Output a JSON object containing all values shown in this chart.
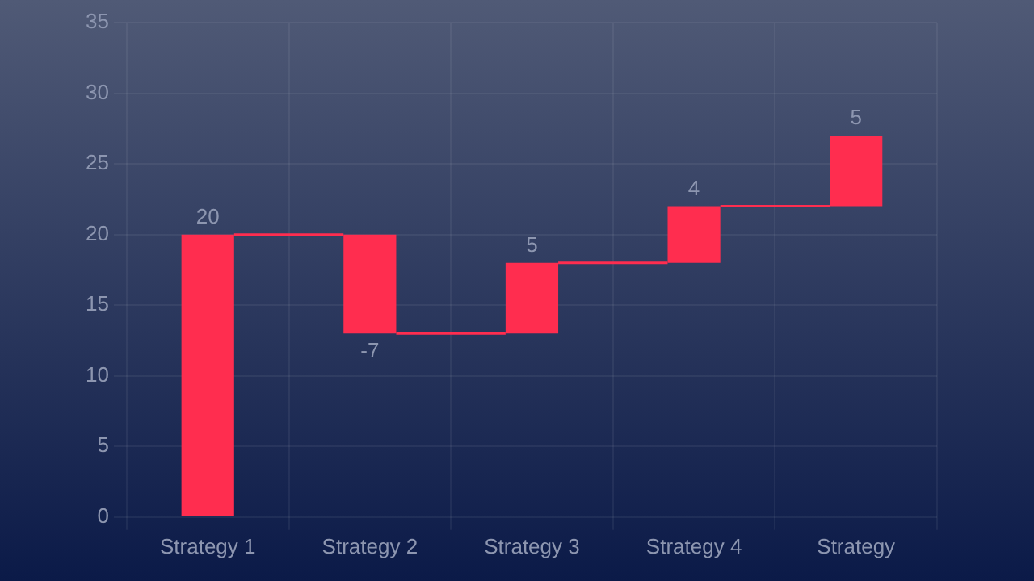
{
  "chart_data": {
    "type": "bar",
    "categories": [
      "Strategy 1",
      "Strategy 2",
      "Strategy 3",
      "Strategy 4",
      "Strategy"
    ],
    "values": [
      20,
      -7,
      5,
      4,
      5
    ],
    "base": [
      0,
      20,
      13,
      18,
      22
    ],
    "color": "#ff2d4f",
    "ylim": [
      0,
      35
    ],
    "yticks": [
      0,
      5,
      10,
      15,
      20,
      25,
      30,
      35
    ],
    "grid": true,
    "data_labels": true
  }
}
